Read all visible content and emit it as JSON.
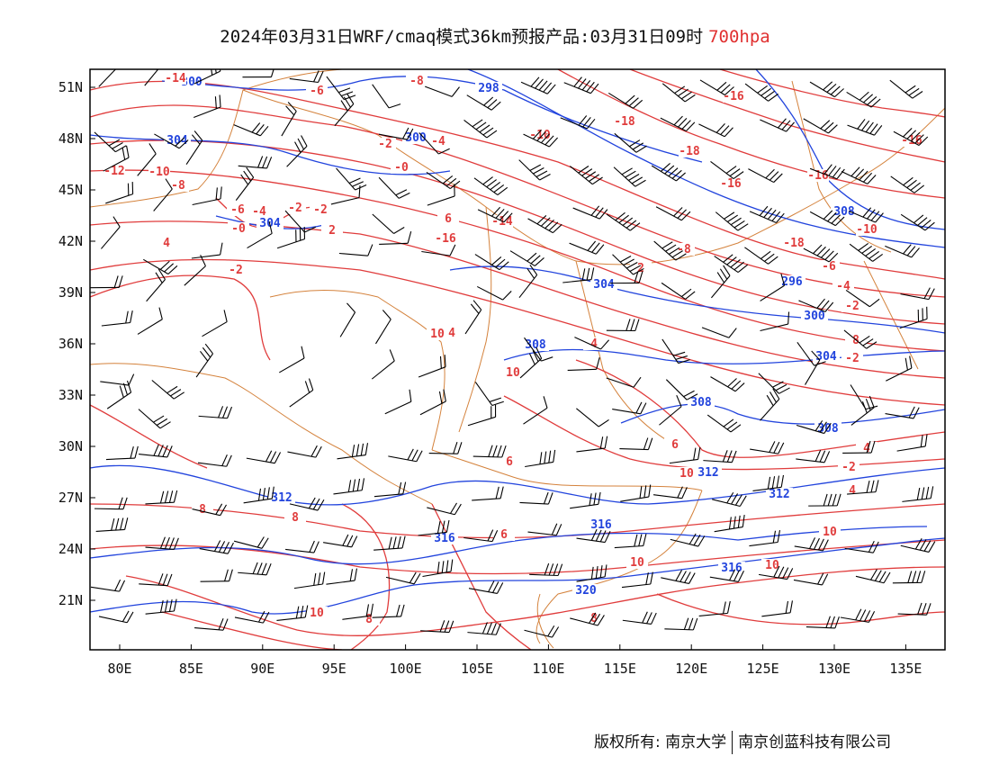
{
  "title": {
    "text": "2024年03月31日WRF/cmaq模式36km预报产品:03月31日09时",
    "level": "700hpa"
  },
  "colors": {
    "temperature": "#e03c3c",
    "height": "#2244dd",
    "border": "#d4823c",
    "wind": "#000000"
  },
  "axes": {
    "x_ticks": [
      "80E",
      "85E",
      "90E",
      "95E",
      "100E",
      "105E",
      "110E",
      "115E",
      "120E",
      "125E",
      "130E",
      "135E"
    ],
    "y_ticks": [
      "51N",
      "48N",
      "45N",
      "42N",
      "39N",
      "36N",
      "33N",
      "30N",
      "27N",
      "24N",
      "21N"
    ]
  },
  "height_labels": [
    "300",
    "298",
    "304",
    "300",
    "304",
    "304",
    "296",
    "308",
    "300",
    "308",
    "304",
    "308",
    "308",
    "312",
    "312",
    "312",
    "316",
    "316",
    "316",
    "320"
  ],
  "temp_labels": [
    "-14",
    "-8",
    "-6",
    "-10",
    "-16",
    "-16",
    "-18",
    "-18",
    "-16",
    "-16",
    "-12",
    "-10",
    "-8",
    "-2",
    "-4",
    "-0",
    "-6",
    "-4",
    "-2",
    "-2",
    "-0",
    "2",
    "4",
    "-2",
    "6",
    "-14",
    "-16",
    "-18",
    "-10",
    "-8",
    "-6",
    "-4",
    "-2",
    "8",
    "-2",
    "2",
    "4",
    "10",
    "4",
    "6",
    "6",
    "4",
    "-2",
    "4",
    "6",
    "8",
    "8",
    "10",
    "10",
    "10",
    "10",
    "8",
    "8",
    "10",
    "10"
  ],
  "footer": {
    "left": "版权所有: 南京大学",
    "right": "南京创蓝科技有限公司"
  }
}
